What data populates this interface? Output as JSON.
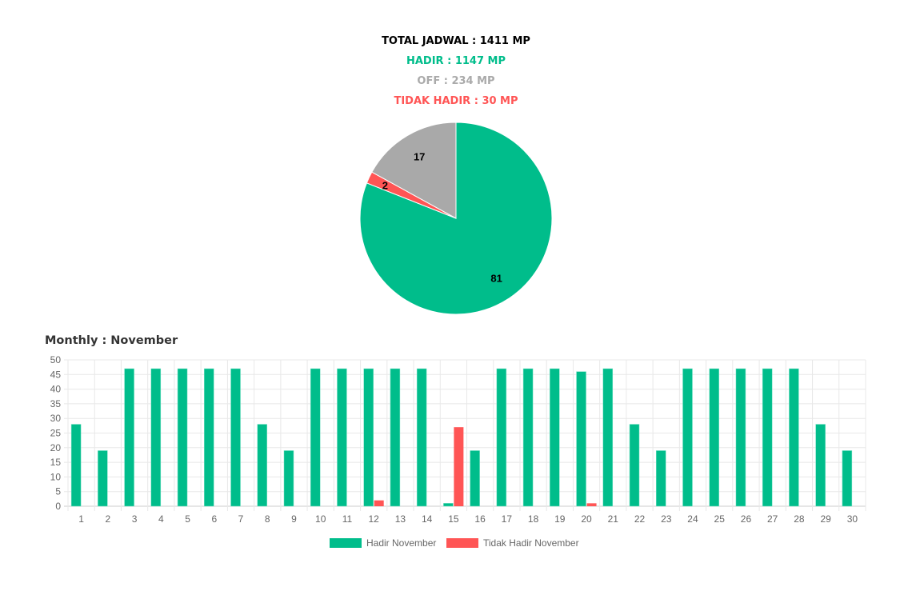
{
  "summary": {
    "total": "TOTAL JADWAL : 1411 MP",
    "hadir": "HADIR : 1147 MP",
    "off": "OFF : 234 MP",
    "tidak_hadir": "TIDAK HADIR : 30 MP"
  },
  "monthly_title": "Monthly : November",
  "colors": {
    "hadir": "#00bd8b",
    "off": "#a9a9a9",
    "tidak_hadir": "#ff5555"
  },
  "chart_data": [
    {
      "type": "pie",
      "labels": [
        "Hadir",
        "Tidak Hadir",
        "Off"
      ],
      "values": [
        81,
        2,
        17
      ],
      "colors": [
        "#00bd8b",
        "#ff5555",
        "#a9a9a9"
      ]
    },
    {
      "type": "bar",
      "title": "Monthly : November",
      "categories": [
        "1",
        "2",
        "3",
        "4",
        "5",
        "6",
        "7",
        "8",
        "9",
        "10",
        "11",
        "12",
        "13",
        "14",
        "15",
        "16",
        "17",
        "18",
        "19",
        "20",
        "21",
        "22",
        "23",
        "24",
        "25",
        "26",
        "27",
        "28",
        "29",
        "30"
      ],
      "series": [
        {
          "name": "Hadir November",
          "color": "#00bd8b",
          "values": [
            28,
            19,
            47,
            47,
            47,
            47,
            47,
            28,
            19,
            47,
            47,
            47,
            47,
            47,
            1,
            19,
            47,
            47,
            47,
            46,
            47,
            28,
            19,
            47,
            47,
            47,
            47,
            47,
            28,
            19
          ]
        },
        {
          "name": "Tidak Hadir November",
          "color": "#ff5555",
          "values": [
            0,
            0,
            0,
            0,
            0,
            0,
            0,
            0,
            0,
            0,
            0,
            2,
            0,
            0,
            27,
            0,
            0,
            0,
            0,
            1,
            0,
            0,
            0,
            0,
            0,
            0,
            0,
            0,
            0,
            0
          ]
        }
      ],
      "ylim": [
        0,
        50
      ],
      "yticks": [
        0,
        5,
        10,
        15,
        20,
        25,
        30,
        35,
        40,
        45,
        50
      ],
      "grid": true,
      "legend": "bottom"
    }
  ]
}
